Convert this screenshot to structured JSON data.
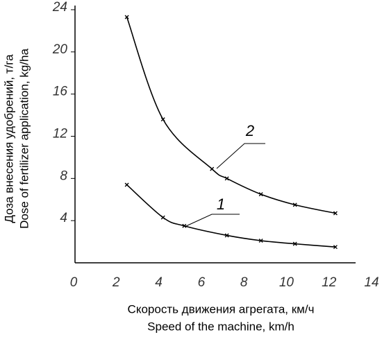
{
  "chart_data": {
    "type": "line",
    "xlabel": [
      "Скорость движения агрегата, км/ч",
      "Speed of the machine, km/h"
    ],
    "ylabel": [
      "Доза внесения удобрений, т/га",
      "Dose of fertilizer application, kg/ha"
    ],
    "xlim": [
      0,
      14
    ],
    "xticks": [
      0,
      2,
      4,
      6,
      8,
      10,
      12,
      14
    ],
    "ylim": [
      0,
      24
    ],
    "yticks": [
      4,
      8,
      12,
      16,
      20,
      24
    ],
    "series": [
      {
        "name": "1",
        "color": "#000000",
        "x": [
          2.5,
          4.2,
          5.2,
          7.2,
          8.8,
          10.4,
          12.3
        ],
        "values": [
          7.4,
          4.3,
          3.5,
          2.6,
          2.1,
          1.8,
          1.5
        ]
      },
      {
        "name": "2",
        "color": "#000000",
        "x": [
          2.5,
          4.2,
          6.5,
          7.2,
          8.8,
          10.4,
          12.3
        ],
        "values": [
          23.3,
          13.6,
          8.9,
          8.0,
          6.5,
          5.5,
          4.7
        ]
      }
    ]
  }
}
